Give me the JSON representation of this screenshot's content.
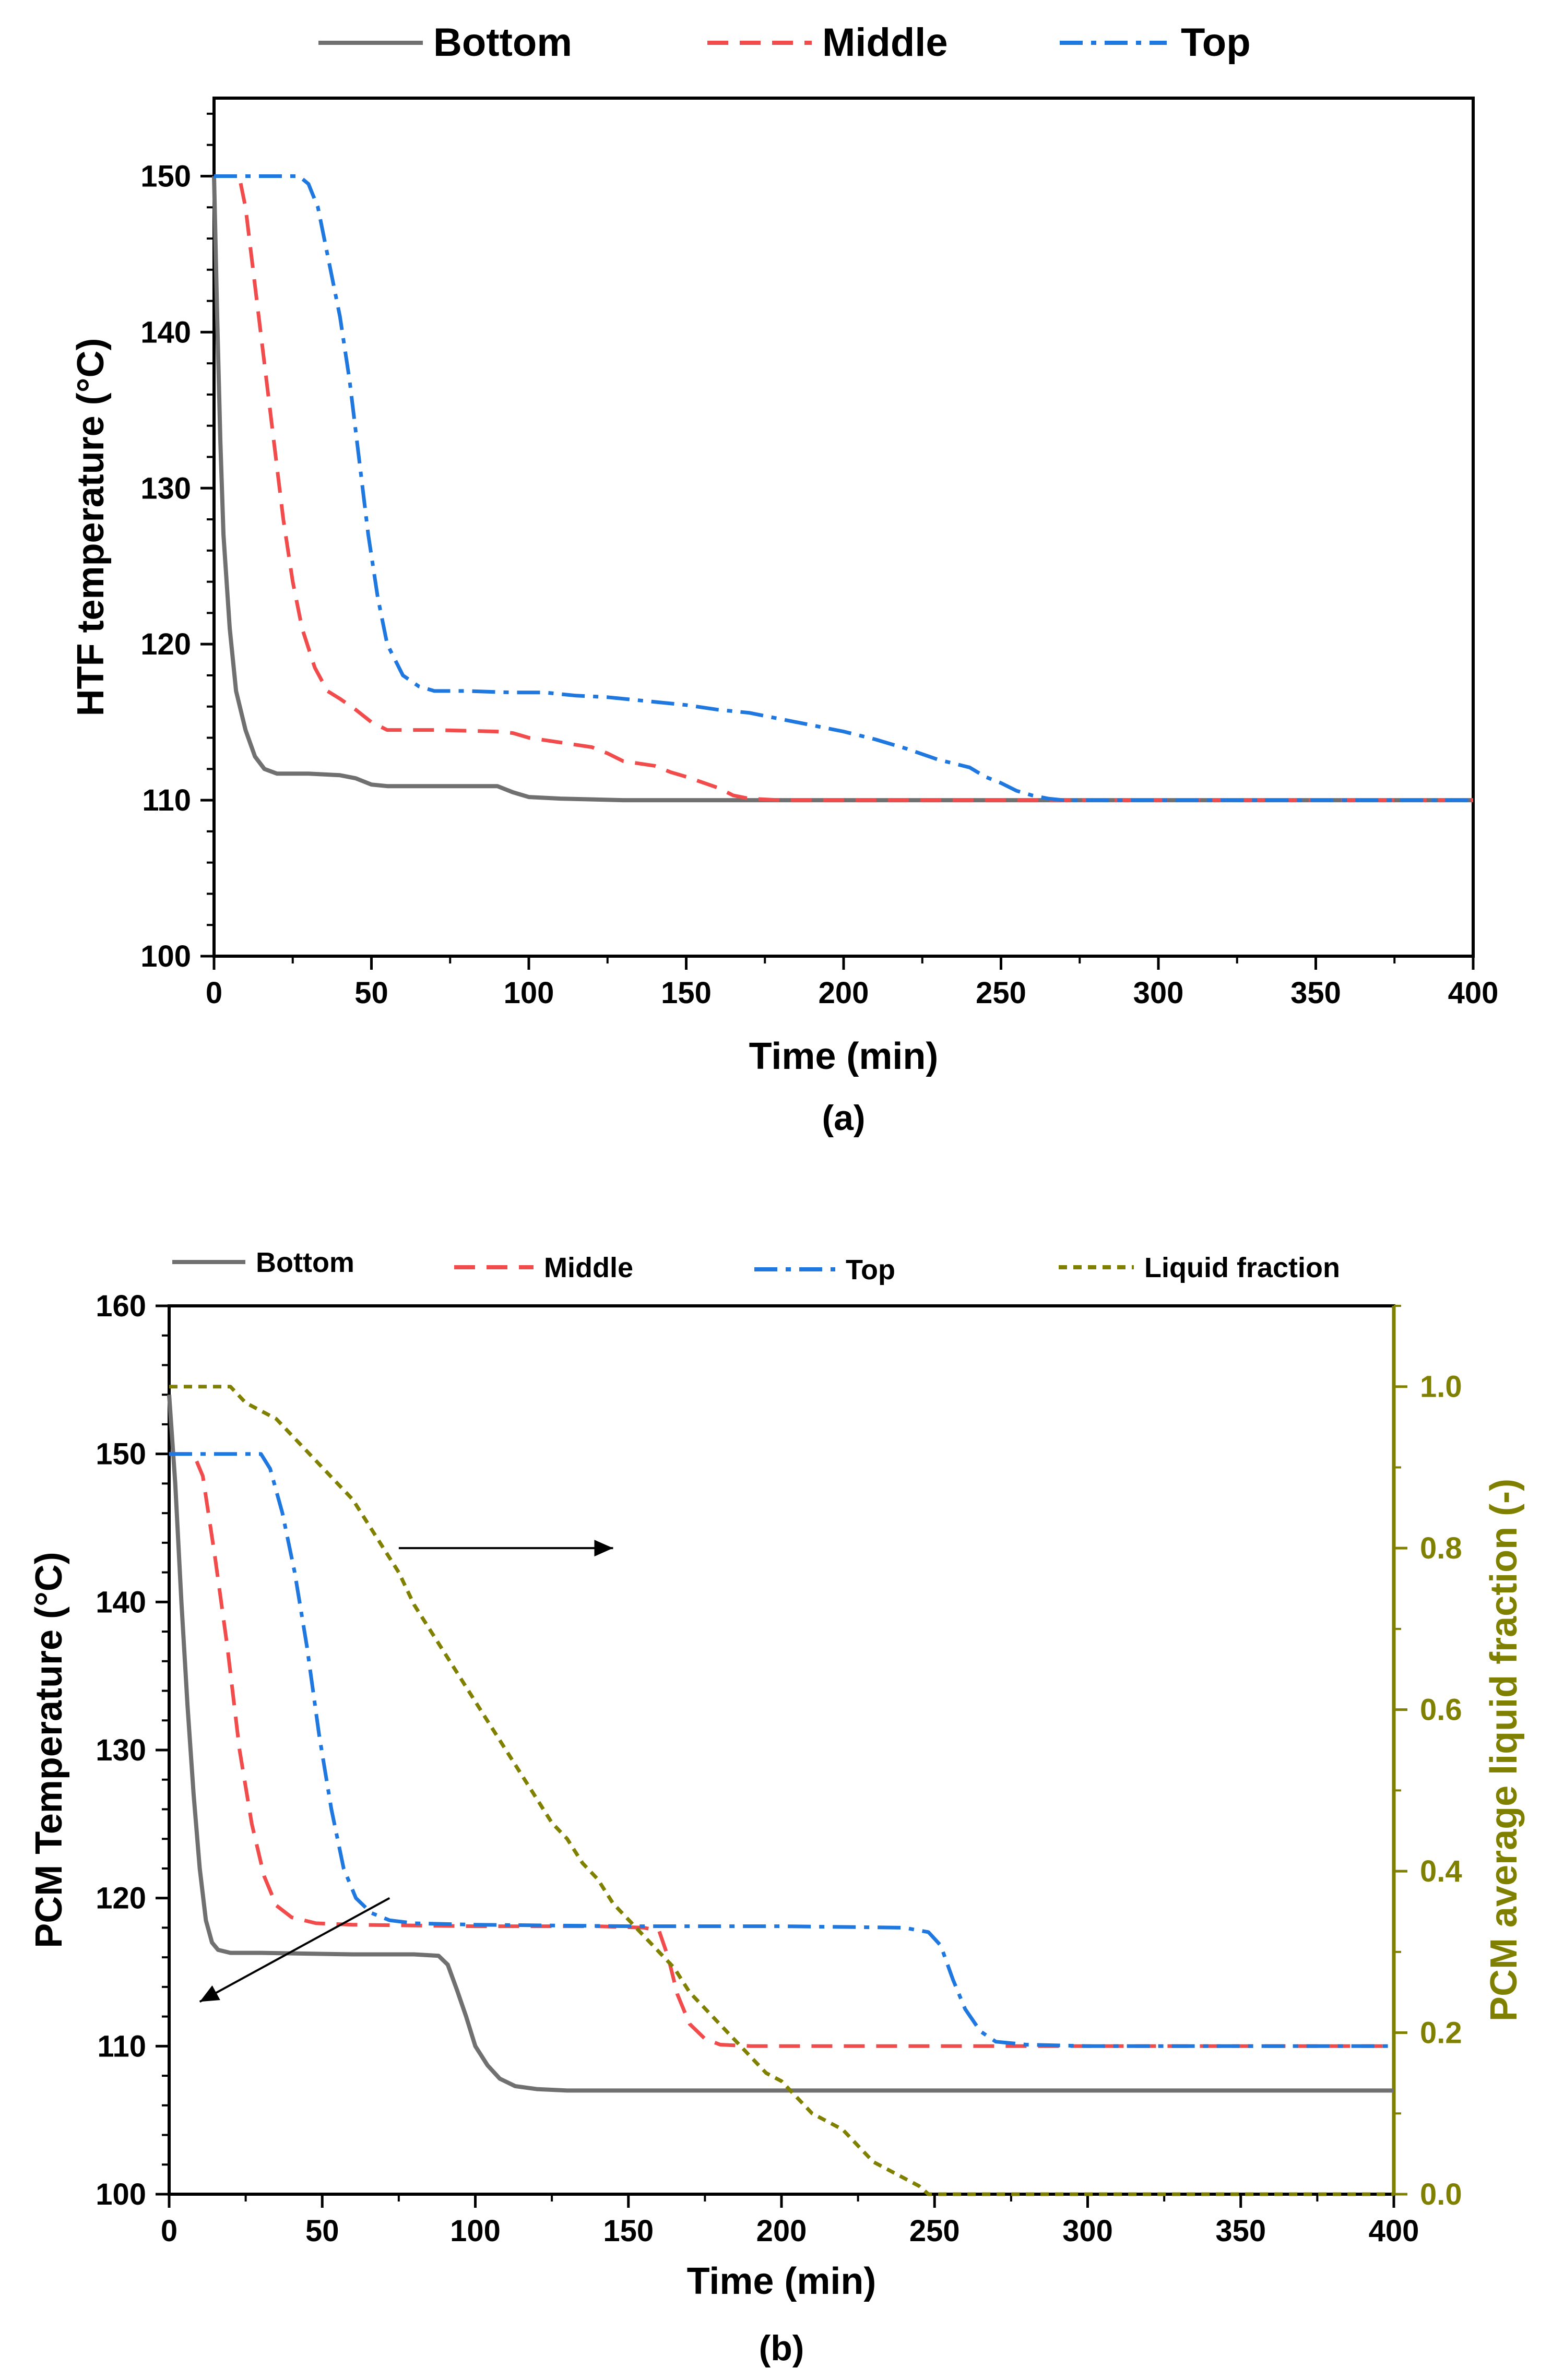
{
  "colors": {
    "bottom": "#707070",
    "middle": "#f24b4b",
    "top": "#1f77e0",
    "liquid": "#808000",
    "axis": "#000000"
  },
  "chart_data": [
    {
      "type": "line",
      "caption": "(a)",
      "xlabel": "Time (min)",
      "ylabel": "HTF temperature (°C)",
      "xlim": [
        0,
        400
      ],
      "ylim": [
        100,
        155
      ],
      "xticks": [
        0,
        50,
        100,
        150,
        200,
        250,
        300,
        350,
        400
      ],
      "yticks": [
        100,
        110,
        120,
        130,
        140,
        150
      ],
      "grid": false,
      "legend_position": "top-center",
      "series": [
        {
          "name": "Bottom",
          "key": "bottom",
          "style": "solid",
          "points": [
            [
              0,
              150
            ],
            [
              1,
              141
            ],
            [
              2,
              133
            ],
            [
              3,
              127
            ],
            [
              5,
              121
            ],
            [
              7,
              117
            ],
            [
              10,
              114.5
            ],
            [
              13,
              112.8
            ],
            [
              16,
              112
            ],
            [
              20,
              111.7
            ],
            [
              30,
              111.7
            ],
            [
              40,
              111.6
            ],
            [
              45,
              111.4
            ],
            [
              50,
              111
            ],
            [
              55,
              110.9
            ],
            [
              70,
              110.9
            ],
            [
              90,
              110.9
            ],
            [
              95,
              110.5
            ],
            [
              100,
              110.2
            ],
            [
              110,
              110.1
            ],
            [
              130,
              110
            ],
            [
              200,
              110
            ],
            [
              300,
              110
            ],
            [
              400,
              110
            ]
          ]
        },
        {
          "name": "Middle",
          "key": "middle",
          "style": "dashed",
          "points": [
            [
              0,
              150
            ],
            [
              5,
              150
            ],
            [
              8,
              150
            ],
            [
              10,
              148
            ],
            [
              13,
              143
            ],
            [
              16,
              138
            ],
            [
              19,
              133
            ],
            [
              22,
              128
            ],
            [
              25,
              124
            ],
            [
              28,
              121
            ],
            [
              32,
              118.5
            ],
            [
              36,
              117
            ],
            [
              40,
              116.5
            ],
            [
              45,
              115.8
            ],
            [
              50,
              115
            ],
            [
              55,
              114.5
            ],
            [
              70,
              114.5
            ],
            [
              90,
              114.4
            ],
            [
              95,
              114.3
            ],
            [
              100,
              114
            ],
            [
              110,
              113.7
            ],
            [
              120,
              113.4
            ],
            [
              125,
              113
            ],
            [
              130,
              112.5
            ],
            [
              140,
              112.2
            ],
            [
              145,
              111.8
            ],
            [
              150,
              111.5
            ],
            [
              160,
              110.8
            ],
            [
              165,
              110.3
            ],
            [
              170,
              110.1
            ],
            [
              180,
              110
            ],
            [
              260,
              110
            ],
            [
              300,
              110
            ],
            [
              400,
              110
            ]
          ]
        },
        {
          "name": "Top",
          "key": "top",
          "style": "dashdot",
          "points": [
            [
              0,
              150
            ],
            [
              10,
              150
            ],
            [
              20,
              150
            ],
            [
              27,
              150
            ],
            [
              30,
              149.5
            ],
            [
              33,
              148
            ],
            [
              36,
              145
            ],
            [
              40,
              141
            ],
            [
              43,
              137
            ],
            [
              46,
              132
            ],
            [
              49,
              127
            ],
            [
              52,
              123
            ],
            [
              55,
              120
            ],
            [
              60,
              118
            ],
            [
              65,
              117.3
            ],
            [
              70,
              117
            ],
            [
              80,
              117
            ],
            [
              95,
              116.9
            ],
            [
              105,
              116.9
            ],
            [
              115,
              116.7
            ],
            [
              125,
              116.6
            ],
            [
              135,
              116.4
            ],
            [
              150,
              116.1
            ],
            [
              160,
              115.8
            ],
            [
              170,
              115.6
            ],
            [
              180,
              115.2
            ],
            [
              190,
              114.8
            ],
            [
              200,
              114.4
            ],
            [
              210,
              113.9
            ],
            [
              220,
              113.3
            ],
            [
              230,
              112.6
            ],
            [
              240,
              112.1
            ],
            [
              245,
              111.5
            ],
            [
              250,
              111.1
            ],
            [
              255,
              110.6
            ],
            [
              260,
              110.3
            ],
            [
              265,
              110.1
            ],
            [
              270,
              110
            ],
            [
              300,
              110
            ],
            [
              400,
              110
            ]
          ]
        }
      ]
    },
    {
      "type": "line",
      "caption": "(b)",
      "xlabel": "Time (min)",
      "ylabel": "PCM Temperature (°C)",
      "y2label": "PCM average liquid fraction (-)",
      "xlim": [
        0,
        400
      ],
      "ylim": [
        100,
        160
      ],
      "y2lim": [
        0,
        1.1
      ],
      "xticks": [
        0,
        50,
        100,
        150,
        200,
        250,
        300,
        350,
        400
      ],
      "yticks": [
        100,
        110,
        120,
        130,
        140,
        150,
        160
      ],
      "y2ticks": [
        0.0,
        0.2,
        0.4,
        0.6,
        0.8,
        1.0
      ],
      "y2tick_labels": [
        "0.0",
        "0.2",
        "0.4",
        "0.6",
        "0.8",
        "1.0"
      ],
      "grid": false,
      "legend_position": "top",
      "series": [
        {
          "name": "Bottom",
          "key": "bottom",
          "style": "solid",
          "axis": "left",
          "points": [
            [
              0,
              154
            ],
            [
              2,
              148
            ],
            [
              4,
              140
            ],
            [
              6,
              133
            ],
            [
              8,
              127
            ],
            [
              10,
              122
            ],
            [
              12,
              118.5
            ],
            [
              14,
              117
            ],
            [
              16,
              116.5
            ],
            [
              20,
              116.3
            ],
            [
              30,
              116.3
            ],
            [
              60,
              116.2
            ],
            [
              80,
              116.2
            ],
            [
              88,
              116.1
            ],
            [
              91,
              115.5
            ],
            [
              94,
              113.8
            ],
            [
              97,
              112
            ],
            [
              100,
              110
            ],
            [
              104,
              108.7
            ],
            [
              108,
              107.8
            ],
            [
              113,
              107.3
            ],
            [
              120,
              107.1
            ],
            [
              130,
              107
            ],
            [
              200,
              107
            ],
            [
              300,
              107
            ],
            [
              400,
              107
            ]
          ]
        },
        {
          "name": "Middle",
          "key": "middle",
          "style": "dashed",
          "axis": "left",
          "points": [
            [
              0,
              150
            ],
            [
              8,
              150
            ],
            [
              11,
              148.5
            ],
            [
              15,
              143
            ],
            [
              19,
              137
            ],
            [
              23,
              130
            ],
            [
              27,
              125
            ],
            [
              31,
              121.5
            ],
            [
              35,
              119.5
            ],
            [
              40,
              118.7
            ],
            [
              48,
              118.3
            ],
            [
              60,
              118.2
            ],
            [
              100,
              118.1
            ],
            [
              140,
              118.1
            ],
            [
              155,
              118
            ],
            [
              160,
              117.8
            ],
            [
              163,
              116
            ],
            [
              166,
              113.5
            ],
            [
              170,
              111.5
            ],
            [
              175,
              110.5
            ],
            [
              180,
              110.1
            ],
            [
              190,
              110
            ],
            [
              300,
              110
            ],
            [
              400,
              110
            ]
          ]
        },
        {
          "name": "Top",
          "key": "top",
          "style": "dashdot",
          "axis": "left",
          "points": [
            [
              0,
              150
            ],
            [
              15,
              150
            ],
            [
              30,
              150
            ],
            [
              33,
              149
            ],
            [
              37,
              146
            ],
            [
              41,
              142
            ],
            [
              45,
              137
            ],
            [
              49,
              131
            ],
            [
              53,
              126
            ],
            [
              57,
              122
            ],
            [
              61,
              120
            ],
            [
              66,
              119
            ],
            [
              72,
              118.5
            ],
            [
              80,
              118.3
            ],
            [
              100,
              118.2
            ],
            [
              150,
              118.1
            ],
            [
              200,
              118.1
            ],
            [
              240,
              118
            ],
            [
              248,
              117.7
            ],
            [
              252,
              116.8
            ],
            [
              256,
              114.5
            ],
            [
              260,
              112.5
            ],
            [
              265,
              111
            ],
            [
              270,
              110.3
            ],
            [
              280,
              110.1
            ],
            [
              300,
              110
            ],
            [
              400,
              110
            ]
          ]
        },
        {
          "name": "Liquid fraction",
          "key": "liquid",
          "style": "dotted",
          "axis": "right",
          "points": [
            [
              0,
              1.0
            ],
            [
              5,
              1.0
            ],
            [
              20,
              1.0
            ],
            [
              25,
              0.98
            ],
            [
              30,
              0.97
            ],
            [
              35,
              0.96
            ],
            [
              40,
              0.94
            ],
            [
              45,
              0.92
            ],
            [
              50,
              0.9
            ],
            [
              55,
              0.88
            ],
            [
              60,
              0.86
            ],
            [
              65,
              0.83
            ],
            [
              70,
              0.8
            ],
            [
              75,
              0.77
            ],
            [
              80,
              0.73
            ],
            [
              85,
              0.7
            ],
            [
              90,
              0.67
            ],
            [
              95,
              0.64
            ],
            [
              100,
              0.61
            ],
            [
              105,
              0.58
            ],
            [
              110,
              0.55
            ],
            [
              115,
              0.52
            ],
            [
              120,
              0.49
            ],
            [
              125,
              0.46
            ],
            [
              130,
              0.44
            ],
            [
              135,
              0.41
            ],
            [
              140,
              0.39
            ],
            [
              145,
              0.36
            ],
            [
              150,
              0.34
            ],
            [
              155,
              0.32
            ],
            [
              160,
              0.3
            ],
            [
              165,
              0.28
            ],
            [
              170,
              0.25
            ],
            [
              175,
              0.23
            ],
            [
              180,
              0.21
            ],
            [
              185,
              0.19
            ],
            [
              190,
              0.17
            ],
            [
              195,
              0.15
            ],
            [
              200,
              0.14
            ],
            [
              205,
              0.12
            ],
            [
              210,
              0.1
            ],
            [
              215,
              0.09
            ],
            [
              220,
              0.08
            ],
            [
              225,
              0.06
            ],
            [
              230,
              0.04
            ],
            [
              235,
              0.03
            ],
            [
              240,
              0.02
            ],
            [
              245,
              0.01
            ],
            [
              248,
              0.0
            ],
            [
              300,
              0.0
            ],
            [
              400,
              0.0
            ]
          ]
        }
      ],
      "annotations": [
        {
          "name": "arrow-to-right-axis",
          "from": [
            75,
            0.8
          ],
          "to": [
            145,
            0.8
          ],
          "axis": "right"
        },
        {
          "name": "arrow-to-left-axis",
          "from": [
            72,
            120
          ],
          "to": [
            10,
            113
          ],
          "axis": "left"
        }
      ]
    }
  ]
}
